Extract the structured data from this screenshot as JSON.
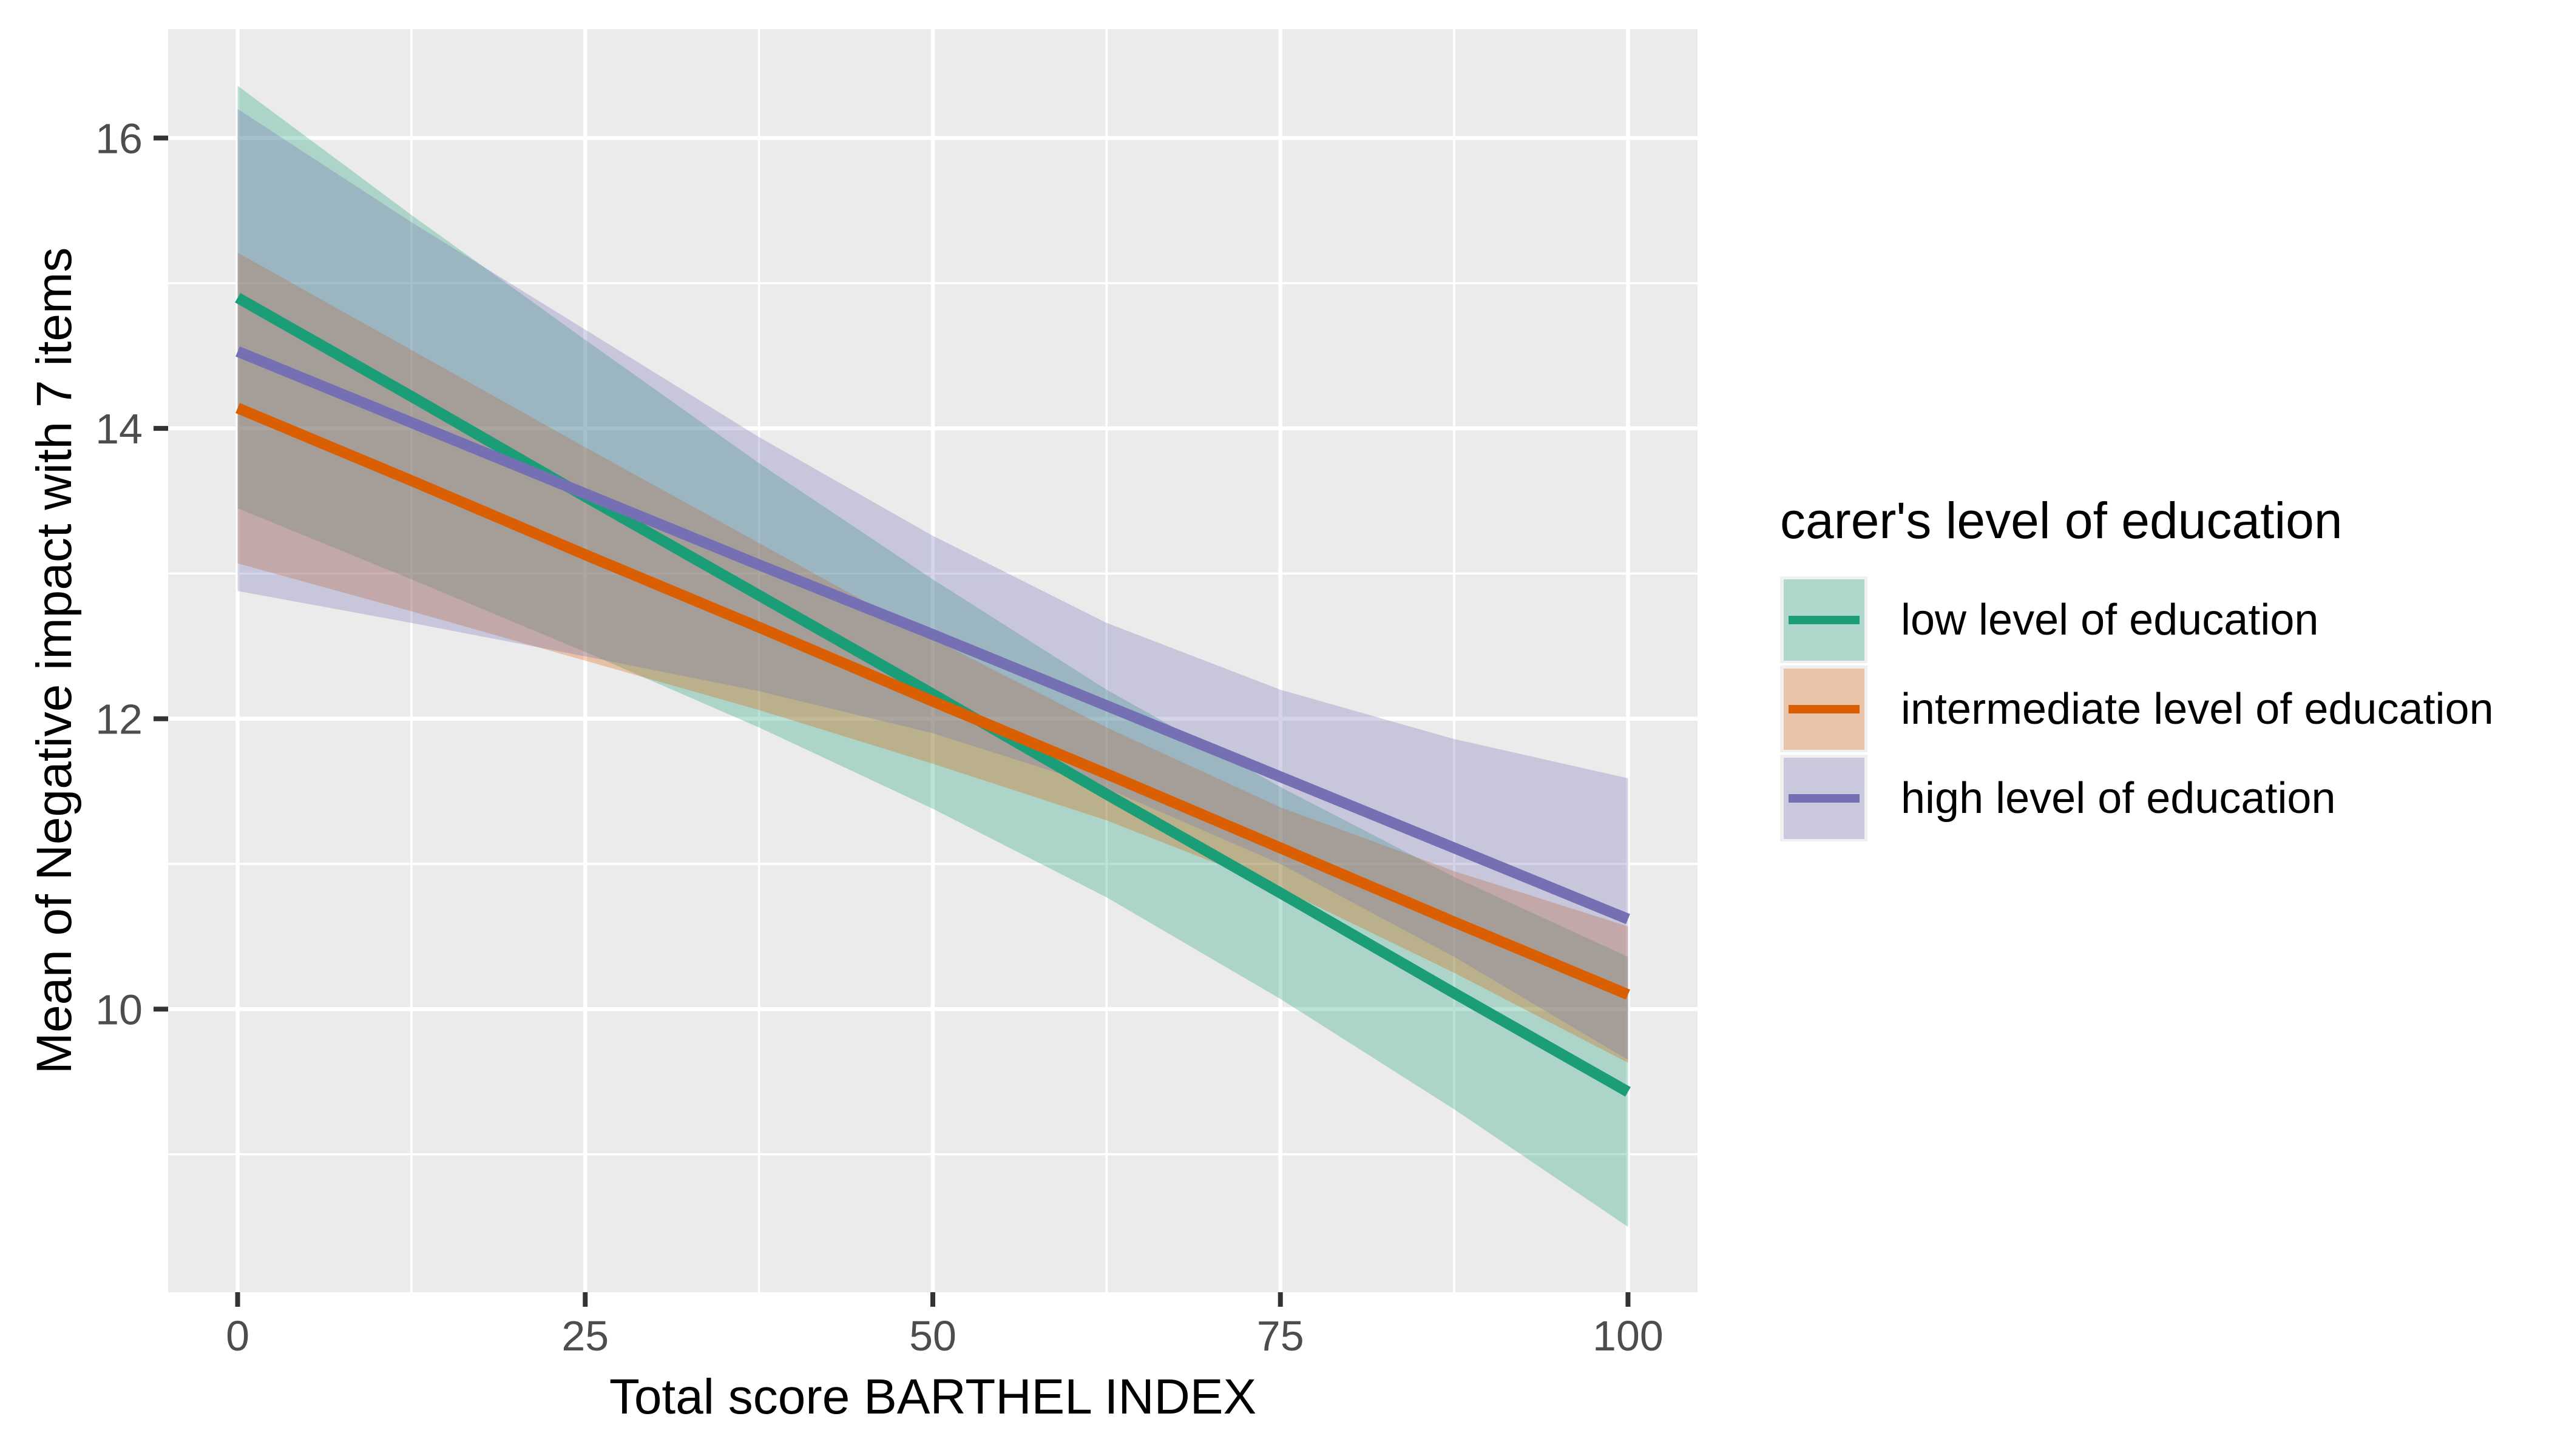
{
  "chart_data": {
    "type": "line",
    "title": "",
    "xlabel": "Total score BARTHEL INDEX",
    "ylabel": "Mean of Negative impact with 7 items",
    "legend_title": "carer's level of education",
    "legend_position": "right",
    "panel_background": "#EBEBEB",
    "grid_color": "#FFFFFF",
    "tick_color": "#333333",
    "tick_label_color": "#4D4D4D",
    "x_axis": {
      "label": "Total score BARTHEL INDEX",
      "range": [
        -5,
        105
      ],
      "ticks": [
        0,
        25,
        50,
        75,
        100
      ],
      "minor_ticks": [
        12.5,
        37.5,
        62.5,
        87.5
      ]
    },
    "y_axis": {
      "label": "Mean of Negative impact with 7 items",
      "range": [
        8.05,
        16.75
      ],
      "ticks": [
        10,
        12,
        14,
        16
      ],
      "minor_ticks": [
        9,
        11,
        13,
        15
      ]
    },
    "x": [
      0,
      12.5,
      25,
      37.5,
      50,
      62.5,
      75,
      87.5,
      100
    ],
    "series": [
      {
        "name": "low level of education",
        "color": "#1B9E77",
        "fill": "rgba(27,158,119,0.30)",
        "y": [
          14.9,
          14.22,
          13.53,
          12.85,
          12.17,
          11.48,
          10.8,
          10.11,
          9.43
        ],
        "ymin": [
          13.45,
          12.96,
          12.46,
          11.94,
          11.38,
          10.77,
          10.07,
          9.31,
          8.5
        ],
        "ymax": [
          16.36,
          15.47,
          14.61,
          13.76,
          12.96,
          12.2,
          11.53,
          10.91,
          10.36
        ]
      },
      {
        "name": "intermediate level of education",
        "color": "#D95F02",
        "fill": "rgba(217,95,2,0.30)",
        "y": [
          14.14,
          13.64,
          13.13,
          12.63,
          12.12,
          11.62,
          11.11,
          10.6,
          10.1
        ],
        "ymin": [
          13.07,
          12.74,
          12.4,
          12.06,
          11.69,
          11.3,
          10.83,
          10.25,
          9.63
        ],
        "ymax": [
          15.21,
          14.54,
          13.87,
          13.21,
          12.55,
          11.94,
          11.39,
          10.95,
          10.57
        ]
      },
      {
        "name": "high level of education",
        "color": "#7570B3",
        "fill": "rgba(117,112,179,0.30)",
        "y": [
          14.53,
          14.04,
          13.55,
          13.06,
          12.58,
          12.09,
          11.6,
          11.11,
          10.62
        ],
        "ymin": [
          12.88,
          12.66,
          12.43,
          12.19,
          11.9,
          11.52,
          11.0,
          10.36,
          9.65
        ],
        "ymax": [
          16.2,
          15.42,
          14.68,
          13.94,
          13.26,
          12.66,
          12.2,
          11.86,
          11.59
        ]
      }
    ]
  }
}
